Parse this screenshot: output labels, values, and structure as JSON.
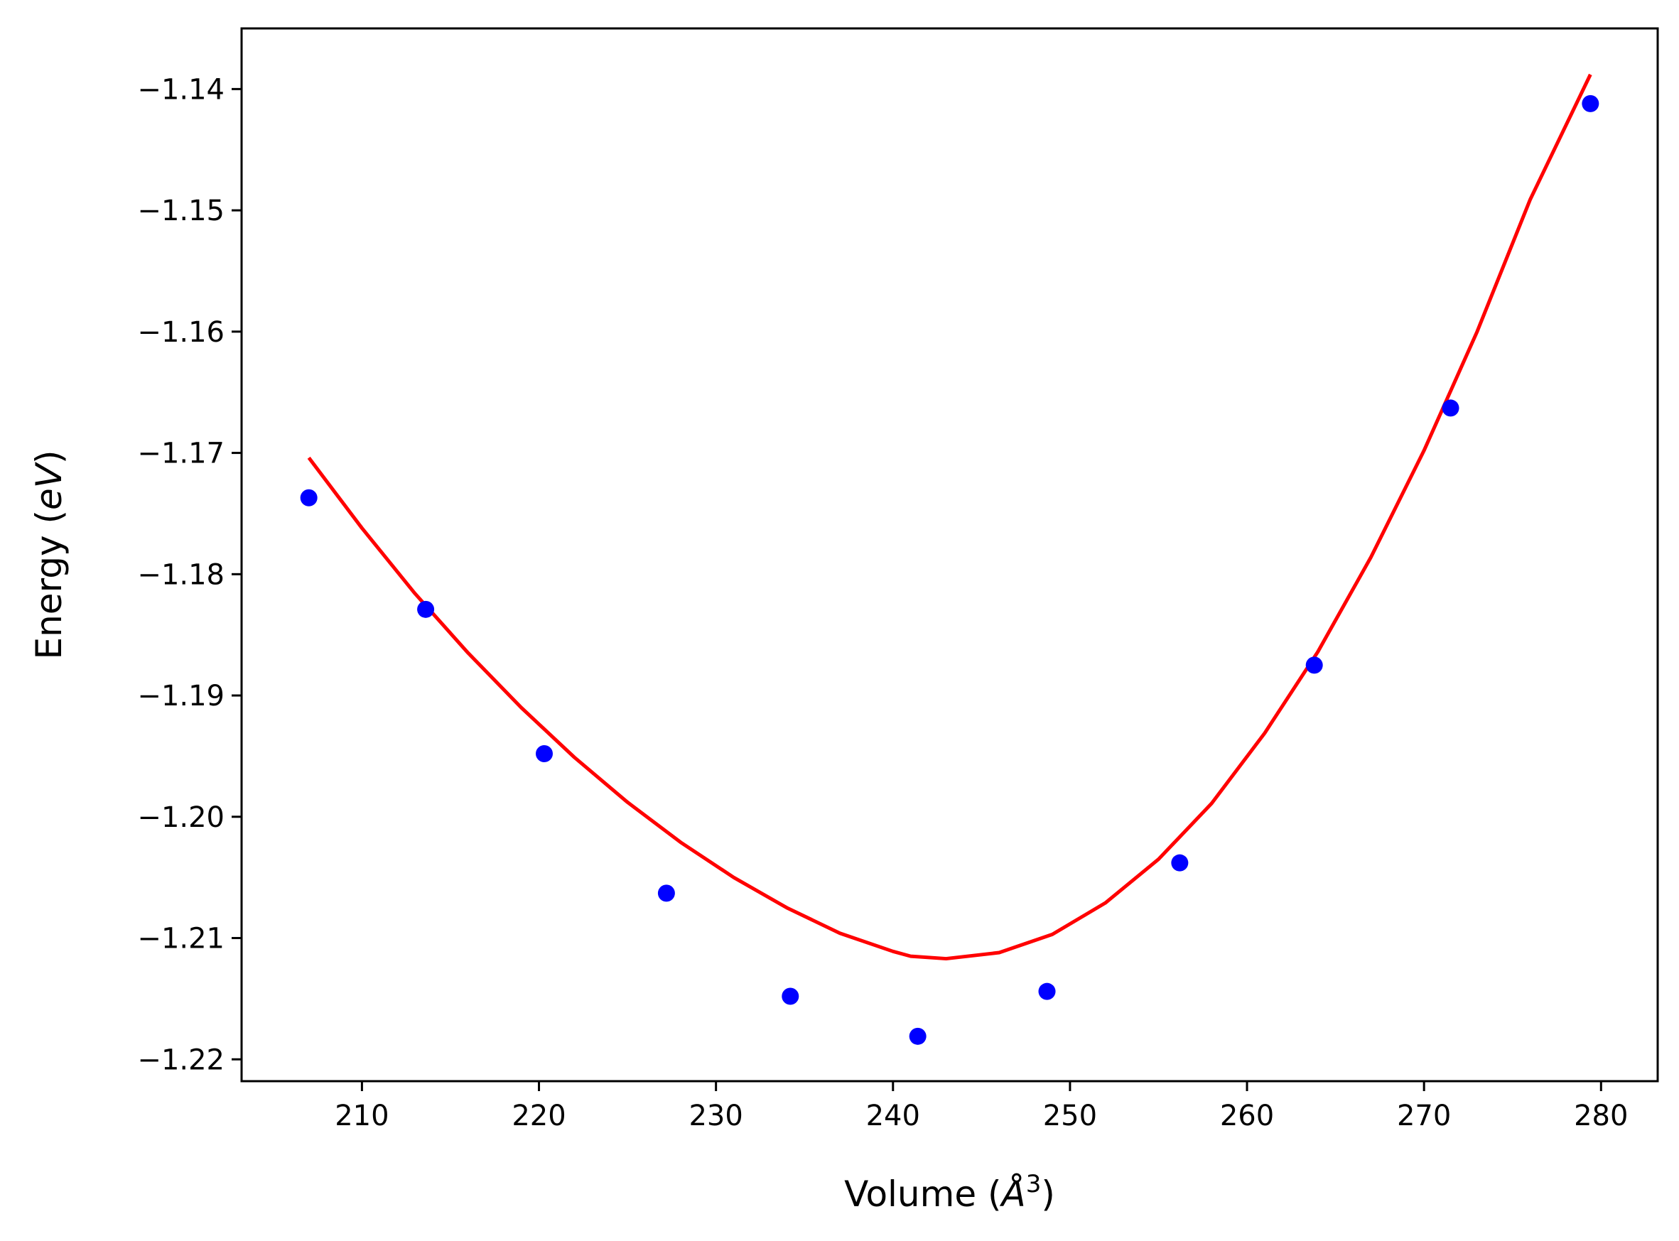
{
  "chart_data": {
    "type": "scatter",
    "title": "",
    "xlabel": {
      "prefix": "Volume (",
      "var": "Å",
      "sup": "3",
      "suffix": ")"
    },
    "ylabel": {
      "prefix": "Energy (",
      "var": "eV",
      "suffix": ")"
    },
    "xlim": [
      203.2,
      283.2
    ],
    "ylim": [
      -1.2218,
      -1.135
    ],
    "xticks": [
      210,
      220,
      230,
      240,
      250,
      260,
      270,
      280
    ],
    "xtick_labels": [
      "210",
      "220",
      "230",
      "240",
      "250",
      "260",
      "270",
      "280"
    ],
    "yticks": [
      -1.22,
      -1.21,
      -1.2,
      -1.19,
      -1.18,
      -1.17,
      -1.16,
      -1.15,
      -1.14
    ],
    "ytick_labels": [
      "−1.22",
      "−1.21",
      "−1.20",
      "−1.19",
      "−1.18",
      "−1.17",
      "−1.16",
      "−1.15",
      "−1.14"
    ],
    "grid": false,
    "series": [
      {
        "kind": "scatter",
        "color": "#0000ff",
        "x": [
          207.0,
          213.6,
          220.3,
          227.2,
          234.2,
          241.4,
          248.7,
          256.2,
          263.8,
          271.5,
          279.4
        ],
        "y": [
          -1.1737,
          -1.1829,
          -1.1948,
          -1.2063,
          -1.2148,
          -1.2181,
          -1.2144,
          -1.2038,
          -1.1875,
          -1.1663,
          -1.1412
        ]
      },
      {
        "kind": "line",
        "color": "#ff0000",
        "x": [
          207.0,
          210.0,
          213.0,
          216.0,
          219.0,
          222.0,
          225.0,
          228.0,
          231.0,
          234.0,
          237.0,
          240.0,
          241.0,
          243.0,
          246.0,
          249.0,
          252.0,
          255.0,
          258.0,
          261.0,
          264.0,
          267.0,
          270.0,
          273.0,
          276.0,
          279.4
        ],
        "y": [
          -1.1704,
          -1.1762,
          -1.1816,
          -1.1865,
          -1.191,
          -1.1951,
          -1.1988,
          -1.2021,
          -1.205,
          -1.2075,
          -1.2096,
          -1.2111,
          -1.2115,
          -1.2117,
          -1.2112,
          -1.2097,
          -1.2071,
          -1.2035,
          -1.1989,
          -1.1931,
          -1.1864,
          -1.1786,
          -1.1698,
          -1.16,
          -1.1491,
          -1.1388
        ]
      }
    ]
  }
}
